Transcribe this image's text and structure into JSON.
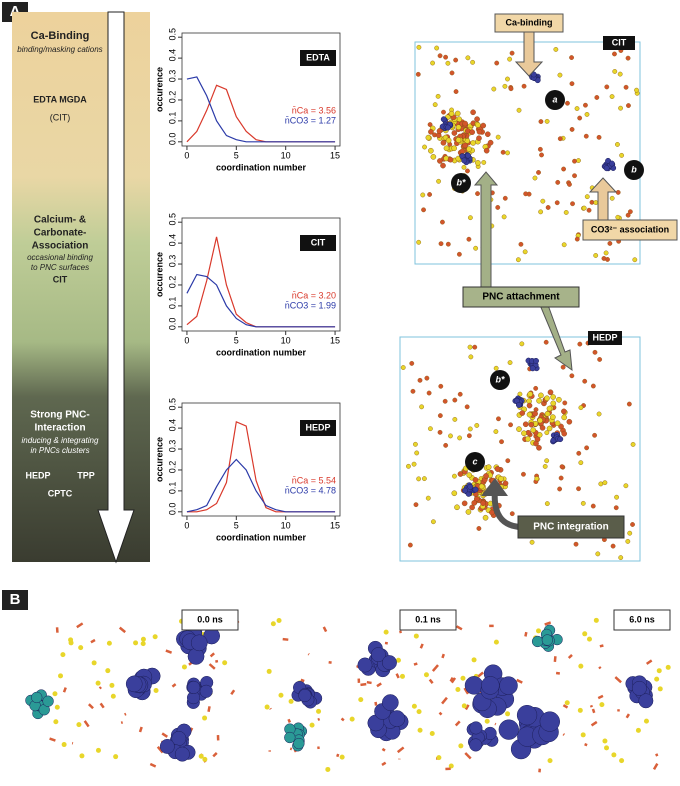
{
  "chart_data": [
    {
      "type": "line",
      "tag": "EDTA",
      "x_label": "coordination number",
      "y_label": "occurence",
      "x": [
        0,
        1,
        2,
        3,
        4,
        5,
        6,
        7,
        8,
        9,
        10,
        11,
        12,
        13,
        14,
        15
      ],
      "series": [
        {
          "name": "n̄Ca = 3.56",
          "color": "#d9392b",
          "values": [
            0,
            0.05,
            0.15,
            0.27,
            0.25,
            0.12,
            0.05,
            0.01,
            0,
            0,
            0,
            0,
            0,
            0,
            0,
            0
          ]
        },
        {
          "name": "n̄CO3 = 1.27",
          "color": "#2b3aa8",
          "values": [
            0.3,
            0.31,
            0.22,
            0.1,
            0.03,
            0.01,
            0,
            0,
            0,
            0,
            0,
            0,
            0,
            0,
            0,
            0
          ]
        }
      ],
      "xlim": [
        -0.5,
        15.5
      ],
      "ylim": [
        -0.02,
        0.52
      ],
      "xticks": [
        0,
        5,
        10,
        15
      ],
      "yticks": [
        {
          "value": 0,
          "label": "0.0"
        },
        0.1,
        0.2,
        0.3,
        0.4,
        0.5
      ]
    },
    {
      "type": "line",
      "tag": "CIT",
      "x_label": "coordination number",
      "y_label": "occurence",
      "x": [
        0,
        1,
        2,
        3,
        4,
        5,
        6,
        7,
        8,
        9,
        10,
        11,
        12,
        13,
        14,
        15
      ],
      "series": [
        {
          "name": "n̄Ca = 3.20",
          "color": "#d9392b",
          "values": [
            0.01,
            0.05,
            0.22,
            0.43,
            0.2,
            0.06,
            0.02,
            0,
            0,
            0,
            0,
            0,
            0,
            0,
            0,
            0
          ]
        },
        {
          "name": "n̄CO3 = 1.99",
          "color": "#2b3aa8",
          "values": [
            0.16,
            0.25,
            0.24,
            0.2,
            0.1,
            0.04,
            0.01,
            0,
            0,
            0,
            0,
            0,
            0,
            0,
            0,
            0
          ]
        }
      ],
      "xlim": [
        -0.5,
        15.5
      ],
      "ylim": [
        -0.02,
        0.52
      ],
      "xticks": [
        0,
        5,
        10,
        15
      ],
      "yticks": [
        {
          "value": 0,
          "label": "0.0"
        },
        0.1,
        0.2,
        0.3,
        0.4,
        0.5
      ]
    },
    {
      "type": "line",
      "tag": "HEDP",
      "x_label": "coordination number",
      "y_label": "occurence",
      "x": [
        0,
        1,
        2,
        3,
        4,
        5,
        6,
        7,
        8,
        9,
        10,
        11,
        12,
        13,
        14,
        15
      ],
      "series": [
        {
          "name": "n̄Ca = 5.54",
          "color": "#d9392b",
          "values": [
            0,
            0,
            0.01,
            0.04,
            0.14,
            0.43,
            0.41,
            0.15,
            0.02,
            0,
            0,
            0,
            0,
            0,
            0,
            0
          ]
        },
        {
          "name": "n̄CO3 = 4.78",
          "color": "#2b3aa8",
          "values": [
            0,
            0.01,
            0.03,
            0.12,
            0.2,
            0.25,
            0.2,
            0.1,
            0.03,
            0.01,
            0,
            0,
            0,
            0,
            0,
            0
          ]
        }
      ],
      "xlim": [
        -0.5,
        15.5
      ],
      "ylim": [
        -0.02,
        0.52
      ],
      "xticks": [
        0,
        5,
        10,
        15
      ],
      "yticks": [
        {
          "value": 0,
          "label": "0.0"
        },
        0.1,
        0.2,
        0.3,
        0.4,
        0.5
      ]
    }
  ],
  "panel_labels": [
    "A",
    "B"
  ],
  "scale": {
    "top": {
      "title": "Ca-Binding",
      "sub": "binding/masking cations",
      "items": [
        "EDTA  MGDA",
        "(CIT)"
      ]
    },
    "middle": {
      "title": [
        "Calcium- &",
        "Carbonate-",
        "Association"
      ],
      "sub": [
        "occasional binding",
        "to PNC surfaces"
      ],
      "items": [
        "CIT"
      ]
    },
    "bottom": {
      "title": [
        "Strong PNC-",
        "Interaction"
      ],
      "sub": [
        "inducing & integrating",
        "in PNCs clusters"
      ],
      "items": [
        "HEDP",
        "TPP",
        "CPTC"
      ]
    }
  },
  "snapshots": {
    "cit": {
      "tag": "CIT",
      "callout_top": "Ca-binding",
      "callout_right": "CO3²⁻ association",
      "sites": [
        "a",
        "b",
        "b*"
      ]
    },
    "attachment": "PNC attachment",
    "hedp": {
      "tag": "HEDP",
      "sites": [
        "b*",
        "c"
      ],
      "callout": "PNC integration"
    }
  },
  "times": [
    "0.0 ns",
    "0.1 ns",
    "6.0 ns"
  ]
}
